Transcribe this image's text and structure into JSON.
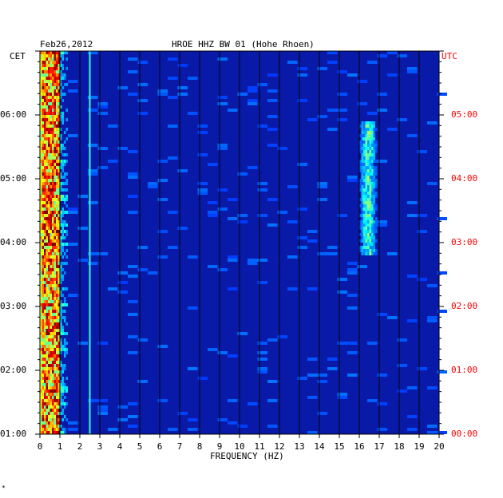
{
  "header": {
    "date": "Feb26,2012",
    "station": "HROE HHZ BW 01 (Hohe Rhoen)"
  },
  "axes": {
    "left_zone": "CET",
    "right_zone": "UTC",
    "xlabel": "FREQUENCY (HZ)",
    "left_ticks": [
      "06:00",
      "05:00",
      "04:00",
      "03:00",
      "02:00",
      "01:00"
    ],
    "right_ticks": [
      "05:00",
      "04:00",
      "03:00",
      "02:00",
      "01:00",
      "00:00"
    ],
    "x_ticks": [
      "0",
      "1",
      "2",
      "3",
      "4",
      "5",
      "6",
      "7",
      "8",
      "9",
      "10",
      "11",
      "12",
      "13",
      "14",
      "15",
      "16",
      "17",
      "18",
      "19",
      "20"
    ],
    "right_tick_color": "#ff0000"
  },
  "footer_mark": "*",
  "colors": {
    "background": "#0a1aa8",
    "noise_band": "#ffd000",
    "gridline": "#000000"
  },
  "chart_data": {
    "type": "heatmap",
    "title": "HROE HHZ BW 01 (Hohe Rhoen)",
    "date": "Feb26,2012",
    "xlabel": "FREQUENCY (HZ)",
    "ylabel_left": "CET",
    "ylabel_right": "UTC",
    "xlim": [
      0,
      20
    ],
    "y_range_cet_hours": [
      1,
      7
    ],
    "y_range_utc_hours": [
      0,
      6
    ],
    "grid": true,
    "features": [
      {
        "label": "broadband noise 0-1 Hz",
        "freq_range_hz": [
          0.1,
          0.9
        ],
        "level": "high"
      },
      {
        "label": "line 2.5 Hz",
        "freq_hz": 2.5,
        "level": "medium"
      },
      {
        "label": "band 16-17 Hz",
        "freq_range_hz": [
          15.8,
          17.0
        ],
        "cet_range": [
          3.8,
          5.9
        ],
        "level": "medium"
      }
    ]
  }
}
